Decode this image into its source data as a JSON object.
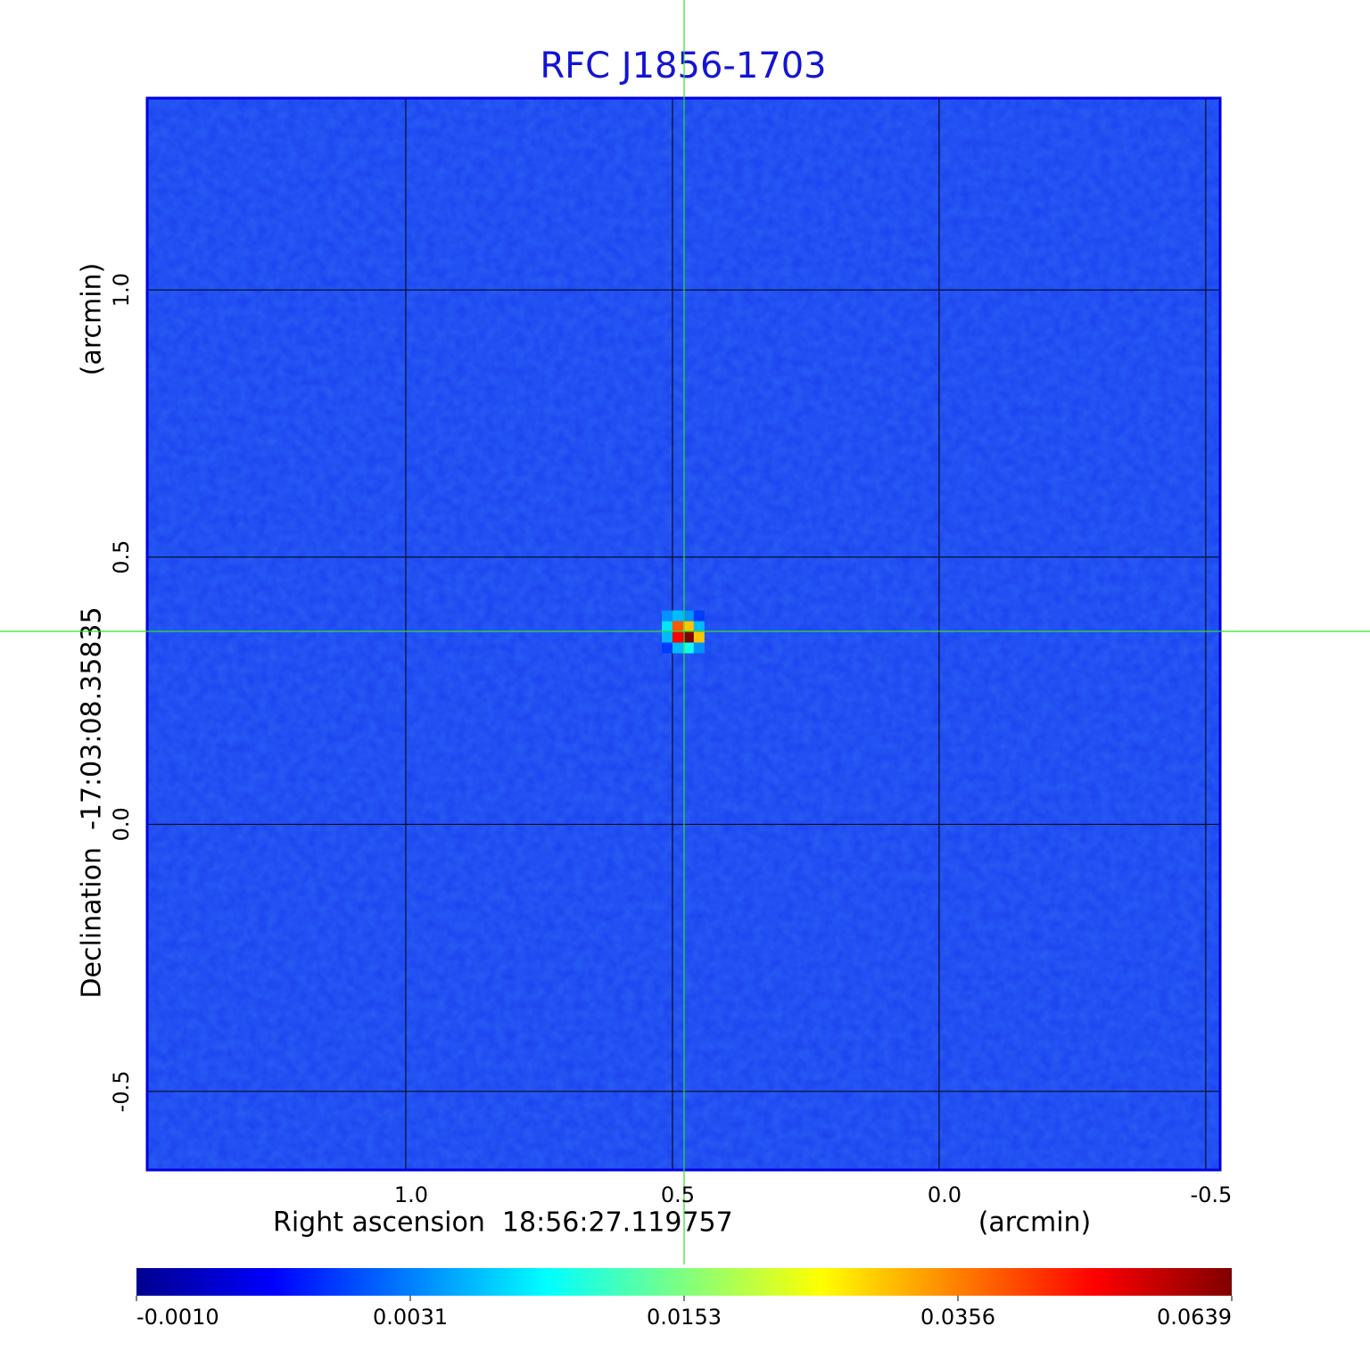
{
  "chart_data": {
    "type": "heatmap",
    "title": "RFC J1856-1703",
    "xlabel": "Right ascension  18:56:27.119757",
    "xunit": "(arcmin)",
    "ylabel": "Declination  -17:03:08.35835",
    "yunit": "(arcmin)",
    "xlim": [
      1.485,
      -0.527
    ],
    "ylim": [
      -0.647,
      1.359
    ],
    "xticks": [
      {
        "value": 1,
        "label": "1.0"
      },
      0.5,
      {
        "value": 0,
        "label": "0.0"
      },
      -0.5
    ],
    "yticks": [
      {
        "value": 1,
        "label": "1.0"
      },
      0.5,
      {
        "value": 0,
        "label": "0.0"
      },
      -0.5
    ],
    "grid": true,
    "colormap": "jet",
    "colorbar_ticks": [
      {
        "value": -0.001,
        "label": "-0.0010"
      },
      {
        "value": 0.0031,
        "label": "0.0031"
      },
      0.0153,
      0.0356,
      0.0639
    ],
    "x": [
      0.51,
      0.49,
      0.47,
      0.45
    ],
    "y": [
      0.39,
      0.37,
      0.35,
      0.33
    ],
    "z": [
      [
        0.004,
        0.006,
        0.004,
        0.002
      ],
      [
        0.008,
        0.04,
        0.03,
        0.006
      ],
      [
        0.006,
        0.05,
        0.0639,
        0.03
      ],
      [
        0.002,
        0.006,
        0.01,
        0.004
      ]
    ]
  }
}
